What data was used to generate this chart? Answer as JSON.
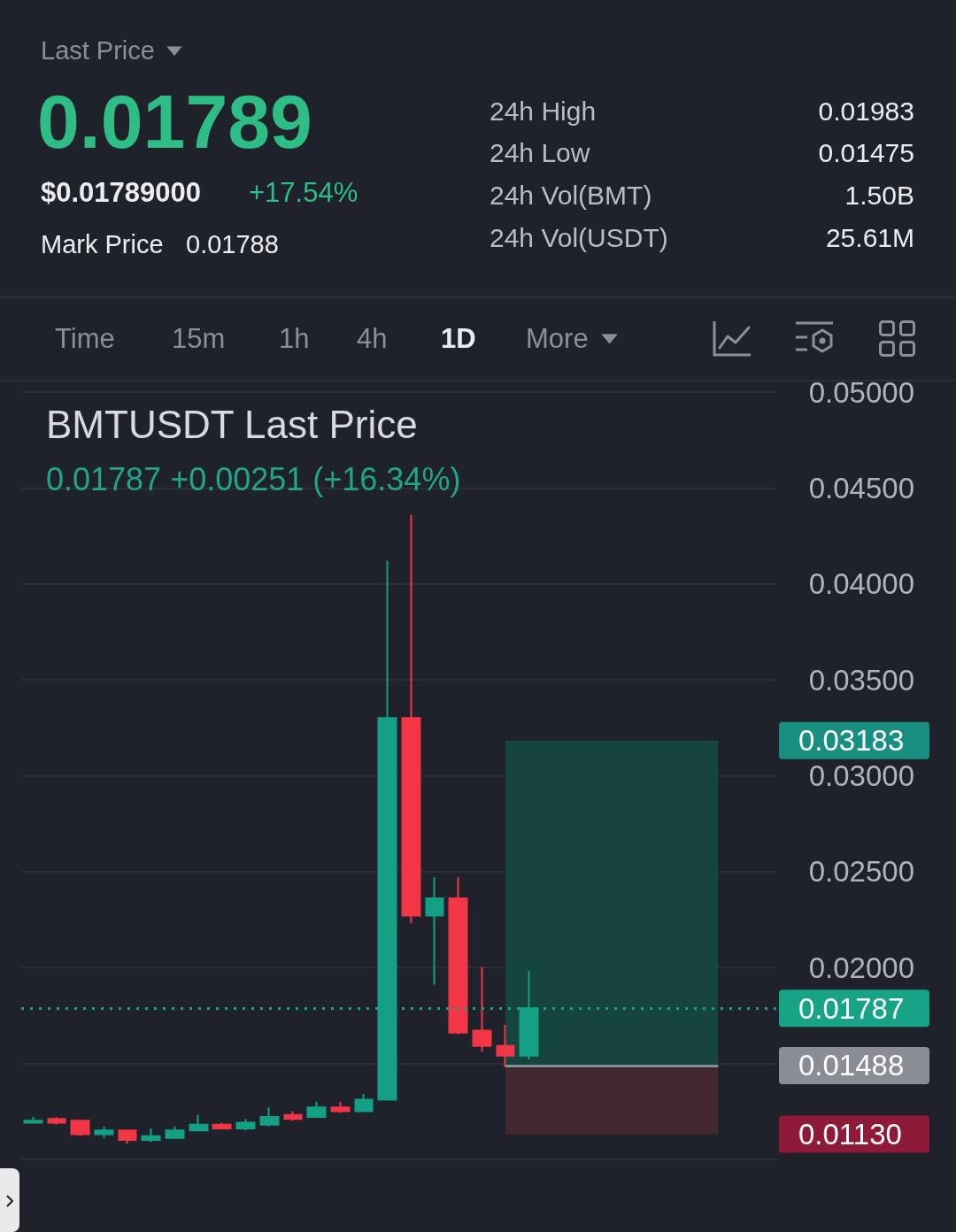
{
  "chart_data": {
    "type": "candlestick",
    "title": "BMTUSDT Last Price",
    "subtitle": "0.01787 +0.00251 (+16.34%)",
    "annotations": [
      "Last Price",
      "0.01789",
      "$0.01789000",
      "+17.54%",
      "Mark Price",
      "0.01788",
      "24h High",
      "0.01983",
      "24h Low",
      "0.01475",
      "24h Vol(BMT)",
      "1.50B",
      "24h Vol(USDT)",
      "25.61M",
      "Time",
      "15m",
      "1h",
      "4h",
      "1D",
      "More"
    ],
    "categories": [
      null,
      null,
      null,
      null,
      null,
      null,
      null,
      null,
      null,
      null,
      null,
      null,
      null,
      null,
      null,
      null,
      null,
      null,
      null,
      null,
      null,
      null,
      null,
      null,
      null,
      null,
      null,
      null,
      null,
      null,
      null,
      null
    ],
    "ohlc": [
      [
        0.0119,
        0.0122,
        0.0119,
        0.012
      ],
      [
        0.0121,
        0.0122,
        0.0118,
        0.0119
      ],
      [
        0.012,
        0.012,
        0.0112,
        0.0113
      ],
      [
        0.0113,
        0.0117,
        0.0111,
        0.0115
      ],
      [
        0.0115,
        0.0115,
        0.0108,
        0.011
      ],
      [
        0.011,
        0.0116,
        0.0109,
        0.0112
      ],
      [
        0.0111,
        0.0117,
        0.0111,
        0.0115
      ],
      [
        0.0115,
        0.0123,
        0.0115,
        0.0118
      ],
      [
        0.0118,
        0.0119,
        0.0116,
        0.0116
      ],
      [
        0.0116,
        0.0121,
        0.0115,
        0.0119
      ],
      [
        0.0118,
        0.0127,
        0.0117,
        0.0122
      ],
      [
        0.0123,
        0.0125,
        0.012,
        0.0121
      ],
      [
        0.0122,
        0.013,
        0.0122,
        0.0127
      ],
      [
        0.0127,
        0.013,
        0.0124,
        0.0125
      ],
      [
        0.0125,
        0.0134,
        0.0125,
        0.0131
      ],
      [
        0.0131,
        0.0412,
        0.0131,
        0.033
      ],
      [
        0.033,
        0.0436,
        0.0223,
        0.0227
      ],
      [
        0.0227,
        0.0247,
        0.0191,
        0.0236
      ],
      [
        0.0236,
        0.0247,
        0.0165,
        0.0166
      ],
      [
        0.0167,
        0.02,
        0.0156,
        0.0159
      ],
      [
        0.0159,
        0.017,
        0.0148,
        0.0154
      ],
      [
        0.0154,
        0.0198,
        0.0152,
        0.01787
      ],
      null,
      null,
      null,
      null,
      null,
      null,
      null,
      null,
      null,
      null
    ],
    "colors": [
      "#14a085",
      "#f23645",
      "#f23645",
      "#14a085",
      "#f23645",
      "#14a085",
      "#14a085",
      "#14a085",
      "#f23645",
      "#14a085",
      "#14a085",
      "#f23645",
      "#14a085",
      "#f23645",
      "#14a085",
      "#14a085",
      "#f23645",
      "#14a085",
      "#f23645",
      "#f23645",
      "#f23645",
      "#14a085",
      null,
      null,
      null,
      null,
      null,
      null,
      null,
      null,
      null,
      null
    ],
    "ylim": [
      0.0062,
      0.0506
    ],
    "yticks": [
      {
        "value": 0.01,
        "label": null
      },
      {
        "value": 0.015,
        "label": null
      },
      {
        "value": 0.02,
        "label": "0.02000"
      },
      {
        "value": 0.025,
        "label": "0.02500"
      },
      {
        "value": 0.03,
        "label": "0.03000"
      },
      {
        "value": 0.035,
        "label": "0.03500"
      },
      {
        "value": 0.04,
        "label": "0.04000"
      },
      {
        "value": 0.045,
        "label": "0.04500"
      },
      {
        "value": 0.05,
        "label": "0.05000"
      }
    ],
    "grid": "y",
    "tick_labels": "y",
    "ref_lines": [
      {
        "axis": "y",
        "value": 0.01787,
        "label": "0.01787",
        "color": "#16a386",
        "line_style": "dotted"
      },
      {
        "axis": "y",
        "value": 0.01488,
        "label": "0.01488",
        "color": "#8a8d95",
        "line_style": "solid"
      }
    ],
    "bands": [
      {
        "axis": "y",
        "from": 0.01488,
        "to": 0.03183,
        "label": "0.03183",
        "color": "#16443f"
      },
      {
        "axis": "y",
        "from": 0.01488,
        "to": 0.0113,
        "label": "0.01130",
        "color": "#43282f"
      }
    ]
  }
}
